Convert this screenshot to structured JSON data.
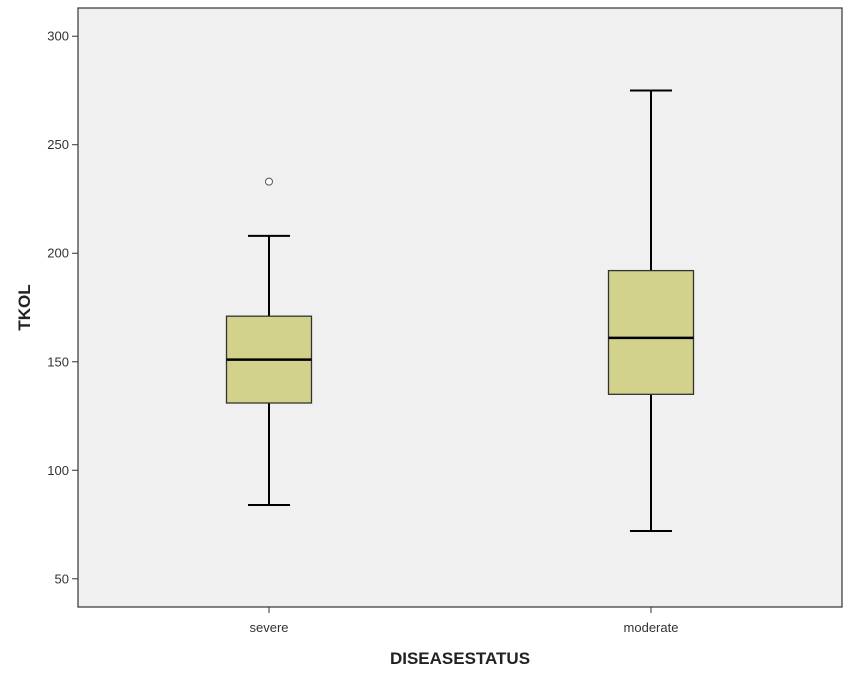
{
  "chart_data": {
    "type": "box",
    "xlabel": "DISEASESTATUS",
    "ylabel": "TKOL",
    "ylim": [
      37,
      313
    ],
    "yticks": [
      50,
      100,
      150,
      200,
      250,
      300
    ],
    "ytick_labels": [
      "50",
      "100",
      "150",
      "200",
      "250",
      "300"
    ],
    "categories": [
      "severe",
      "moderate"
    ],
    "boxes": [
      {
        "category": "severe",
        "whisker_low": 84,
        "q1": 131,
        "median": 151,
        "q3": 171,
        "whisker_high": 208,
        "outliers": [
          233
        ]
      },
      {
        "category": "moderate",
        "whisker_low": 72,
        "q1": 135,
        "median": 161,
        "q3": 192,
        "whisker_high": 275,
        "outliers": []
      }
    ],
    "grid": false,
    "colors": {
      "plot_background": "#f0f0f0",
      "box_fill": "#d2d28c",
      "box_stroke": "#333333",
      "line": "#000000",
      "outlier": "#ffffff"
    }
  }
}
